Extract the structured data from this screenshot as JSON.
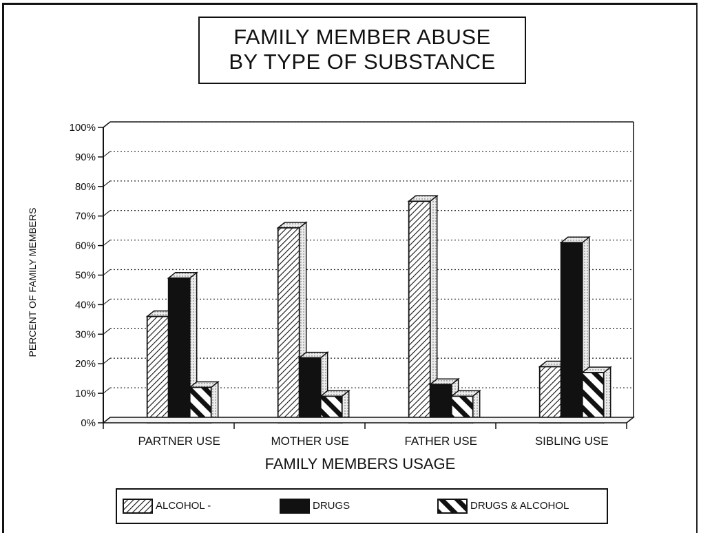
{
  "chart_data": {
    "type": "bar",
    "title_lines": [
      "FAMILY MEMBER ABUSE",
      "BY TYPE OF SUBSTANCE"
    ],
    "xlabel": "FAMILY MEMBERS USAGE",
    "ylabel": "PERCENT OF FAMILY MEMBERS",
    "categories": [
      "PARTNER USE",
      "MOTHER USE",
      "FATHER USE",
      "SIBLING USE"
    ],
    "series": [
      {
        "name": "ALCOHOL",
        "values": [
          36,
          66,
          75,
          19
        ],
        "pattern": "dense-diagonal"
      },
      {
        "name": "DRUGS",
        "values": [
          49,
          22,
          13,
          61
        ],
        "pattern": "solid-black"
      },
      {
        "name": "DRUGS & ALCOHOL",
        "values": [
          12,
          9,
          9,
          17
        ],
        "pattern": "wide-diagonal"
      }
    ],
    "ylim": [
      0,
      100
    ],
    "ytick_labels": [
      "0%",
      "10%",
      "20%",
      "30%",
      "40%",
      "50%",
      "60%",
      "70%",
      "80%",
      "90%",
      "100%"
    ],
    "grid": true,
    "legend_position": "bottom",
    "colors": {
      "ink": "#111111",
      "grid": "#333333",
      "top_face": "#e9e9e9"
    }
  },
  "legend": {
    "alcohol_label": "ALCOHOL -",
    "drugs_label": "DRUGS",
    "both_label": "DRUGS & ALCOHOL"
  }
}
